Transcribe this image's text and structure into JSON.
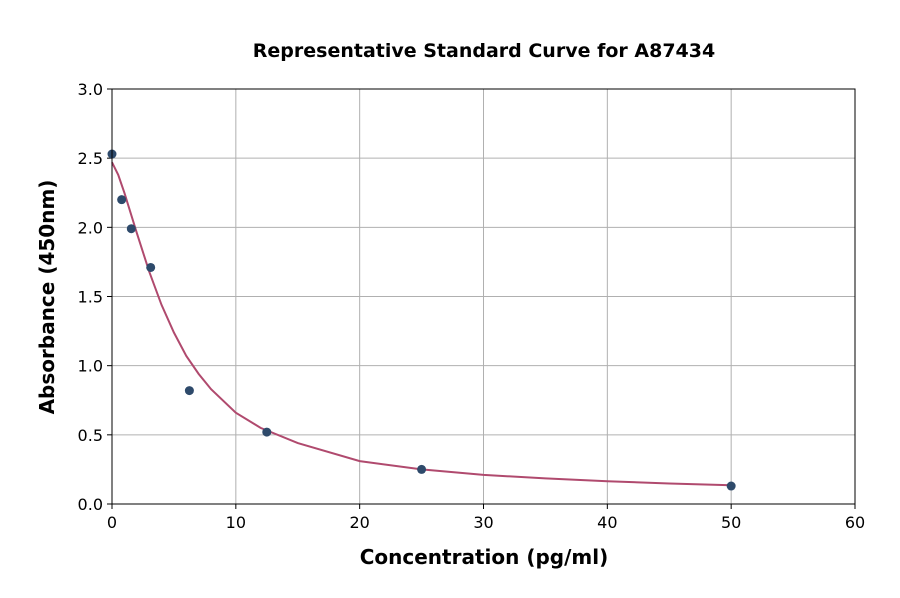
{
  "chart_data": {
    "type": "scatter",
    "title": "Representative Standard Curve for A87434",
    "xlabel": "Concentration (pg/ml)",
    "ylabel": "Absorbance (450nm)",
    "xlim": [
      0,
      60
    ],
    "ylim": [
      0,
      3.0
    ],
    "xticks": [
      "0",
      "10",
      "20",
      "30",
      "40",
      "50",
      "60"
    ],
    "yticks": [
      "0.0",
      "0.5",
      "1.0",
      "1.5",
      "2.0",
      "2.5",
      "3.0"
    ],
    "grid": true,
    "colors": {
      "points": "#2e4a6b",
      "curve": "#b04a6e",
      "grid": "#b0b0b0"
    },
    "points": {
      "x": [
        0,
        0.78,
        1.56,
        3.125,
        6.25,
        12.5,
        25,
        50
      ],
      "y": [
        2.53,
        2.2,
        1.99,
        1.71,
        0.82,
        0.52,
        0.25,
        0.13
      ]
    },
    "fit_curve": {
      "x": [
        0,
        0.5,
        1,
        2,
        3,
        4,
        5,
        6,
        7,
        8,
        10,
        12,
        15,
        20,
        25,
        30,
        35,
        40,
        45,
        50
      ],
      "y": [
        2.47,
        2.38,
        2.25,
        1.96,
        1.68,
        1.44,
        1.24,
        1.07,
        0.94,
        0.83,
        0.66,
        0.55,
        0.44,
        0.31,
        0.25,
        0.21,
        0.185,
        0.165,
        0.148,
        0.135
      ]
    }
  }
}
